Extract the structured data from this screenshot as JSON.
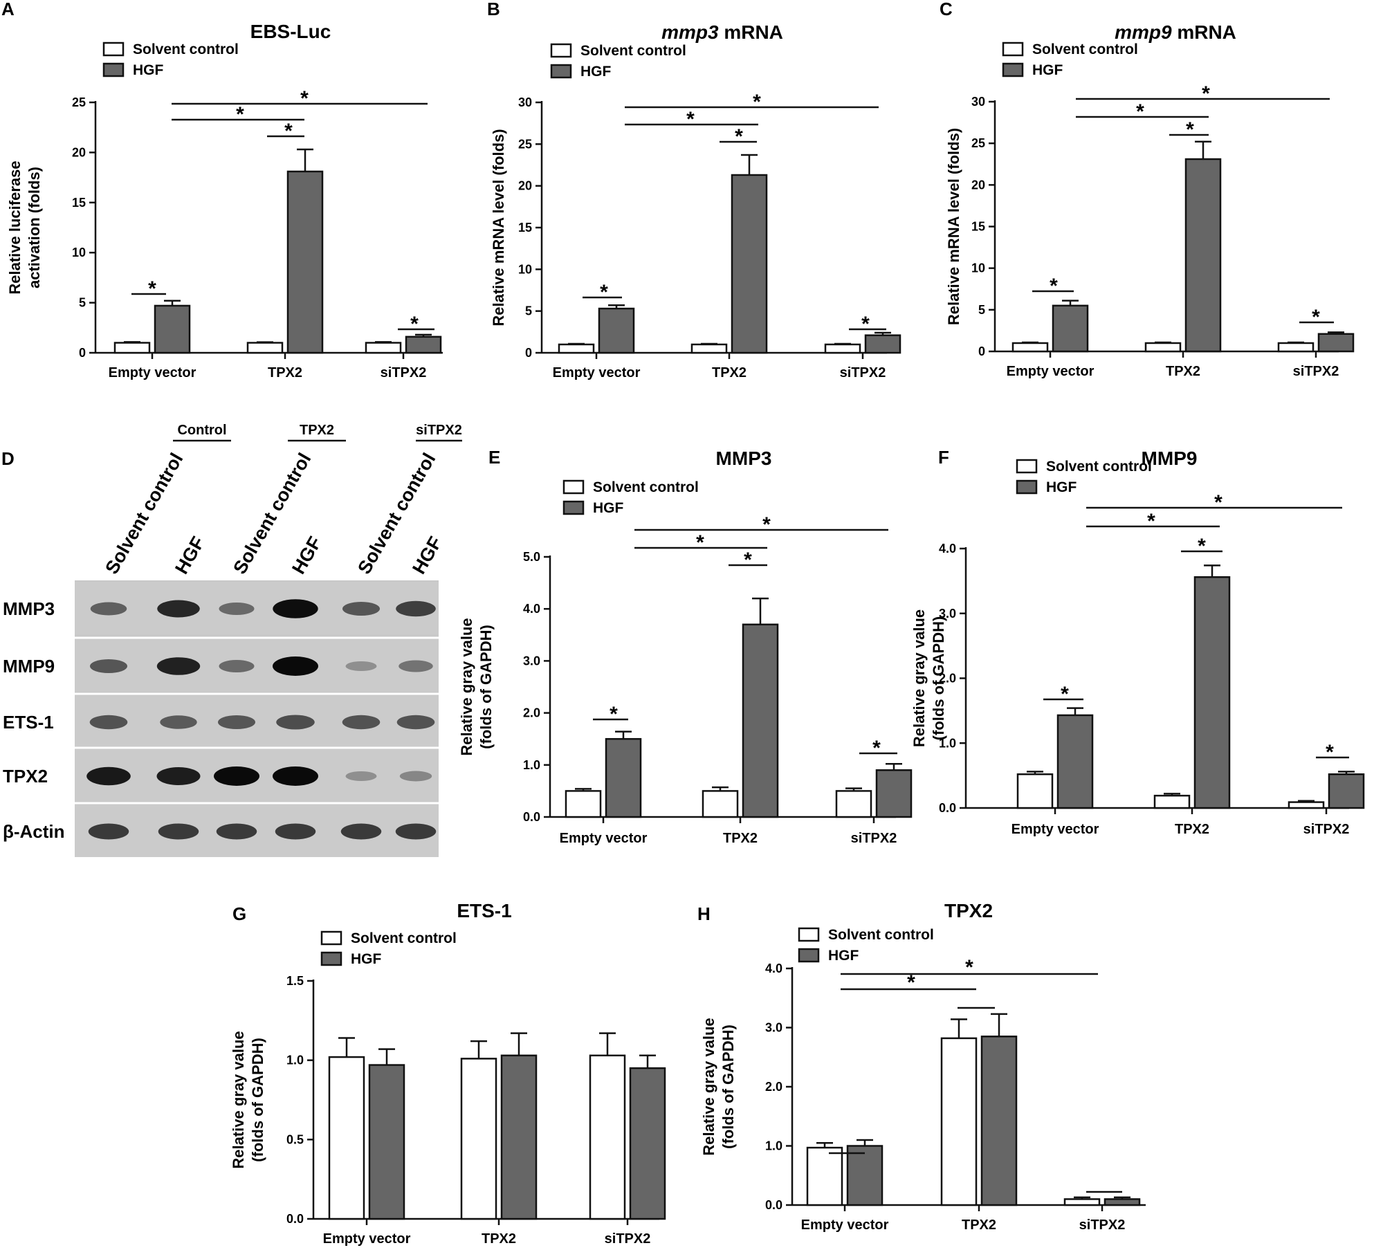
{
  "figure": {
    "panels": [
      "A",
      "B",
      "C",
      "D",
      "E",
      "F",
      "G",
      "H"
    ]
  },
  "chart_data": [
    {
      "panel": "A",
      "type": "bar",
      "title": "EBS-Luc",
      "title_italic": "",
      "ylabel": [
        "Relative luciferase",
        "activation (folds)"
      ],
      "ylim": [
        0,
        25
      ],
      "yticks": [
        0,
        5,
        10,
        15,
        20,
        25
      ],
      "ytick_labels": [
        "0",
        "5",
        "10",
        "15",
        "20",
        "25"
      ],
      "categories": [
        "Empty vector",
        "TPX2",
        "siTPX2"
      ],
      "series": [
        {
          "name": "Solvent control",
          "color": "#ffffff",
          "values": [
            1.0,
            1.0,
            1.0
          ],
          "errors": [
            0.08,
            0.06,
            0.08
          ]
        },
        {
          "name": "HGF",
          "color": "#666666",
          "values": [
            4.7,
            18.1,
            1.6
          ],
          "errors": [
            0.5,
            2.2,
            0.2
          ]
        }
      ],
      "stars": [
        "*",
        "*",
        "*",
        "*",
        "*"
      ]
    },
    {
      "panel": "B",
      "type": "bar",
      "title": "mRNA",
      "title_italic": "mmp3",
      "ylabel": [
        "Relative mRNA level (folds)"
      ],
      "ylim": [
        0,
        30
      ],
      "yticks": [
        0,
        5,
        10,
        15,
        20,
        25,
        30
      ],
      "ytick_labels": [
        "0",
        "5",
        "10",
        "15",
        "20",
        "25",
        "30"
      ],
      "categories": [
        "Empty vector",
        "TPX2",
        "siTPX2"
      ],
      "series": [
        {
          "name": "Solvent control",
          "color": "#ffffff",
          "values": [
            1.0,
            1.0,
            1.0
          ],
          "errors": [
            0.08,
            0.08,
            0.08
          ]
        },
        {
          "name": "HGF",
          "color": "#666666",
          "values": [
            5.3,
            21.3,
            2.1
          ],
          "errors": [
            0.4,
            2.4,
            0.3
          ]
        }
      ],
      "stars": [
        "*",
        "*",
        "*",
        "*",
        "*"
      ]
    },
    {
      "panel": "C",
      "type": "bar",
      "title": "mRNA",
      "title_italic": "mmp9",
      "ylabel": [
        "Relative mRNA level (folds)"
      ],
      "ylim": [
        0,
        30
      ],
      "yticks": [
        0,
        5,
        10,
        15,
        20,
        25,
        30
      ],
      "ytick_labels": [
        "0",
        "5",
        "10",
        "15",
        "20",
        "25",
        "30"
      ],
      "categories": [
        "Empty vector",
        "TPX2",
        "siTPX2"
      ],
      "series": [
        {
          "name": "Solvent control",
          "color": "#ffffff",
          "values": [
            1.0,
            1.0,
            1.0
          ],
          "errors": [
            0.08,
            0.08,
            0.08
          ]
        },
        {
          "name": "HGF",
          "color": "#666666",
          "values": [
            5.5,
            23.1,
            2.1
          ],
          "errors": [
            0.6,
            2.1,
            0.2
          ]
        }
      ],
      "stars": [
        "*",
        "*",
        "*",
        "*",
        "*"
      ]
    },
    {
      "panel": "E",
      "type": "bar",
      "title": "MMP3",
      "title_italic": "",
      "ylabel": [
        "Relative gray value",
        "(folds of GAPDH)"
      ],
      "ylim": [
        0,
        5
      ],
      "yticks": [
        0,
        1,
        2,
        3,
        4,
        5
      ],
      "ytick_labels": [
        "0.0",
        "1.0",
        "2.0",
        "3.0",
        "4.0",
        "5.0"
      ],
      "categories": [
        "Empty vector",
        "TPX2",
        "siTPX2"
      ],
      "series": [
        {
          "name": "Solvent control",
          "color": "#ffffff",
          "values": [
            0.5,
            0.5,
            0.5
          ],
          "errors": [
            0.04,
            0.07,
            0.05
          ]
        },
        {
          "name": "HGF",
          "color": "#666666",
          "values": [
            1.5,
            3.7,
            0.9
          ],
          "errors": [
            0.14,
            0.5,
            0.12
          ]
        }
      ],
      "stars": [
        "*",
        "*",
        "*",
        "*",
        "*"
      ]
    },
    {
      "panel": "F",
      "type": "bar",
      "title": "MMP9",
      "title_italic": "",
      "ylabel": [
        "Relative gray value",
        "(folds of GAPDH)"
      ],
      "ylim": [
        0,
        4
      ],
      "yticks": [
        0,
        1,
        2,
        3,
        4
      ],
      "ytick_labels": [
        "0.0",
        "1.0",
        "2.0",
        "3.0",
        "4.0"
      ],
      "categories": [
        "Empty vector",
        "TPX2",
        "siTPX2"
      ],
      "series": [
        {
          "name": "Solvent control",
          "color": "#ffffff",
          "values": [
            0.52,
            0.19,
            0.09
          ],
          "errors": [
            0.04,
            0.03,
            0.02
          ]
        },
        {
          "name": "HGF",
          "color": "#666666",
          "values": [
            1.43,
            3.56,
            0.52
          ],
          "errors": [
            0.11,
            0.18,
            0.04
          ]
        }
      ],
      "stars": [
        "*",
        "*",
        "*",
        "*",
        "*"
      ]
    },
    {
      "panel": "G",
      "type": "bar",
      "title": "ETS-1",
      "title_italic": "",
      "ylabel": [
        "Relative gray value",
        "(folds of GAPDH)"
      ],
      "ylim": [
        0,
        1.5
      ],
      "yticks": [
        0,
        0.5,
        1.0,
        1.5
      ],
      "ytick_labels": [
        "0.0",
        "0.5",
        "1.0",
        "1.5"
      ],
      "categories": [
        "Empty vector",
        "TPX2",
        "siTPX2"
      ],
      "series": [
        {
          "name": "Solvent control",
          "color": "#ffffff",
          "values": [
            1.02,
            1.01,
            1.03
          ],
          "errors": [
            0.12,
            0.11,
            0.14
          ]
        },
        {
          "name": "HGF",
          "color": "#666666",
          "values": [
            0.97,
            1.03,
            0.95
          ],
          "errors": [
            0.1,
            0.14,
            0.08
          ]
        }
      ],
      "stars": []
    },
    {
      "panel": "H",
      "type": "bar",
      "title": "TPX2",
      "title_italic": "",
      "ylabel": [
        "Relative gray value",
        "(folds of GAPDH)"
      ],
      "ylim": [
        0,
        4
      ],
      "yticks": [
        0,
        1,
        2,
        3,
        4
      ],
      "ytick_labels": [
        "0.0",
        "1.0",
        "2.0",
        "3.0",
        "4.0"
      ],
      "categories": [
        "Empty vector",
        "TPX2",
        "siTPX2"
      ],
      "series": [
        {
          "name": "Solvent control",
          "color": "#ffffff",
          "values": [
            0.97,
            2.82,
            0.1
          ],
          "errors": [
            0.08,
            0.32,
            0.03
          ]
        },
        {
          "name": "HGF",
          "color": "#666666",
          "values": [
            1.0,
            2.85,
            0.1
          ],
          "errors": [
            0.1,
            0.38,
            0.03
          ]
        }
      ],
      "stars": [
        "*",
        "*"
      ]
    }
  ],
  "blot": {
    "lane_labels": [
      "Solvent control",
      "HGF",
      "Solvent control",
      "HGF",
      "Solvent control",
      "HGF"
    ],
    "groups": [
      "Control",
      "TPX2",
      "siTPX2"
    ],
    "rows": [
      {
        "label": "MMP3",
        "intensity": [
          0.55,
          0.85,
          0.5,
          0.98,
          0.6,
          0.72
        ]
      },
      {
        "label": "MMP9",
        "intensity": [
          0.6,
          0.88,
          0.5,
          1.0,
          0.3,
          0.45
        ]
      },
      {
        "label": "ETS-1",
        "intensity": [
          0.62,
          0.58,
          0.6,
          0.65,
          0.62,
          0.62
        ]
      },
      {
        "label": "TPX2",
        "intensity": [
          0.92,
          0.9,
          1.0,
          1.0,
          0.3,
          0.35
        ]
      },
      {
        "label": "β-Actin",
        "intensity": [
          0.75,
          0.75,
          0.75,
          0.75,
          0.75,
          0.75
        ]
      }
    ]
  }
}
